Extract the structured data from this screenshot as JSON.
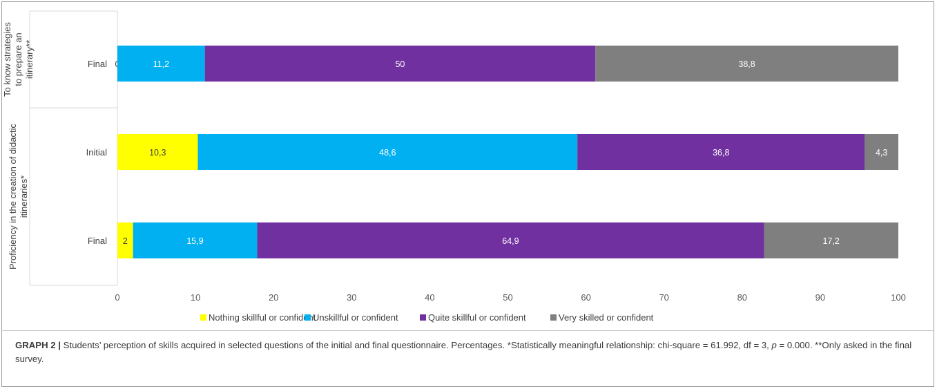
{
  "chart_data": {
    "type": "bar",
    "orientation": "horizontal",
    "stacked": true,
    "xlim": [
      0,
      100
    ],
    "xticks": [
      "0",
      "10",
      "20",
      "30",
      "40",
      "50",
      "60",
      "70",
      "80",
      "90",
      "100"
    ],
    "grid": false,
    "legend_position": "bottom",
    "groups": [
      {
        "label": "To know strategies to prepare an itinerary**",
        "label_lines": [
          "To know strategies",
          "to prepare an",
          "itinerary**"
        ]
      },
      {
        "label": "Proficiency in the creation of didactic itineraries*",
        "label_lines": [
          "Proficiency in the creation of didactic",
          "itineraries*"
        ]
      }
    ],
    "categories": [
      "Final",
      "Initial",
      "Final"
    ],
    "category_groups": [
      0,
      1,
      1
    ],
    "series": [
      {
        "name": "Nothing skillful or confident",
        "color": "#ffff00",
        "label_color": "#404040",
        "values": [
          0,
          10.3,
          2
        ],
        "labels": [
          "0",
          "10,3",
          "2"
        ]
      },
      {
        "name": "Unskillful or confident",
        "color": "#00b0f0",
        "label_color": "#ffffff",
        "values": [
          11.2,
          48.6,
          15.9
        ],
        "labels": [
          "11,2",
          "48,6",
          "15,9"
        ]
      },
      {
        "name": "Quite skillful or confident",
        "color": "#7030a0",
        "label_color": "#ffffff",
        "values": [
          50,
          36.8,
          64.9
        ],
        "labels": [
          "50",
          "36,8",
          "64,9"
        ]
      },
      {
        "name": "Very skilled or confident",
        "color": "#7f7f7f",
        "label_color": "#ffffff",
        "values": [
          38.8,
          4.3,
          17.2
        ],
        "labels": [
          "38,8",
          "4,3",
          "17,2"
        ]
      }
    ]
  },
  "caption": {
    "head": "GRAPH 2 |",
    "text1": " Students’ perception of skills acquired in selected questions of the initial and final questionnaire. Percentages. *Statistically meaningful relationship: chi-square = 61.992, df = 3, ",
    "p_symbol": "p",
    "text2": " = 0.000. **Only asked in the final survey."
  }
}
